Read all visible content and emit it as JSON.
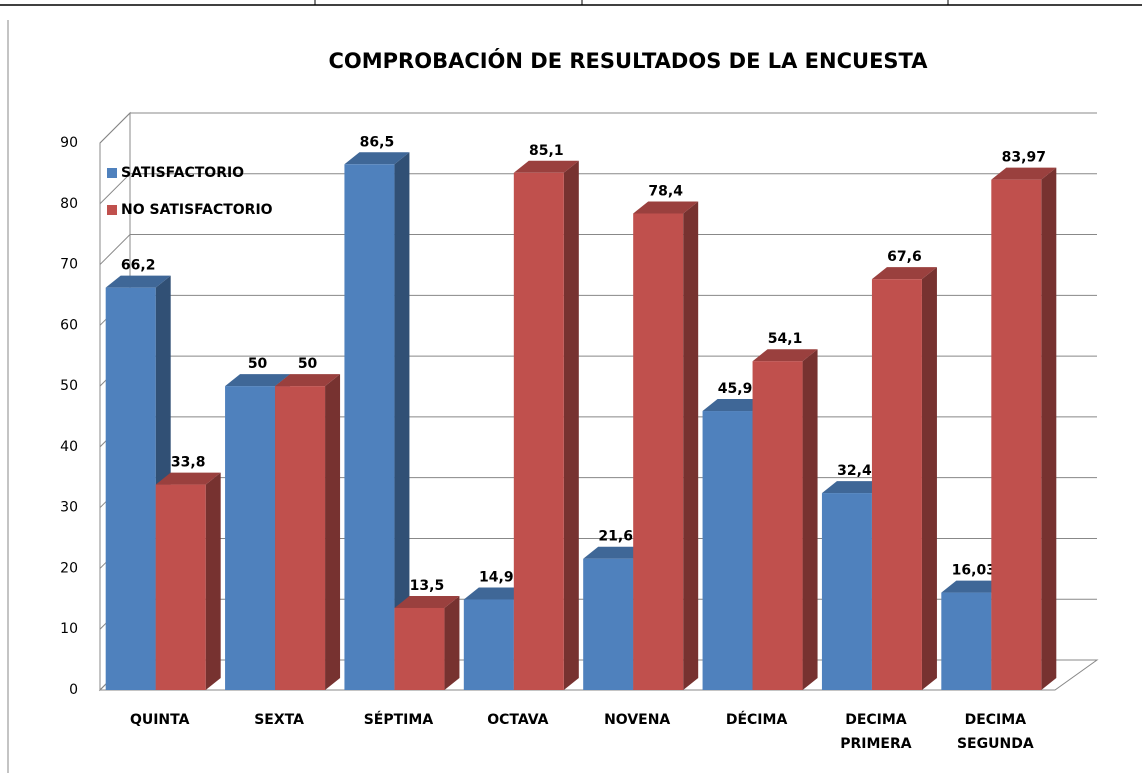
{
  "chart_data": {
    "type": "bar3d",
    "title": "COMPROBACIÓN DE RESULTADOS DE LA ENCUESTA",
    "categories": [
      "QUINTA",
      "SEXTA",
      "SÉPTIMA",
      "OCTAVA",
      "NOVENA",
      "DÉCIMA",
      "DECIMA PRIMERA",
      "DECIMA SEGUNDA"
    ],
    "series": [
      {
        "name": "SATISFACTORIO",
        "color": "#4f81bd",
        "values": [
          66.2,
          50,
          86.5,
          14.9,
          21.6,
          45.9,
          32.4,
          16.03
        ],
        "value_labels": [
          "66,2",
          "50",
          "86,5",
          "14,9",
          "21,6",
          "45,9",
          "32,4",
          "16,03"
        ]
      },
      {
        "name": "NO SATISFACTORIO",
        "color": "#c0504d",
        "values": [
          33.8,
          50,
          13.5,
          85.1,
          78.4,
          54.1,
          67.6,
          83.97
        ],
        "value_labels": [
          "33,8",
          "50",
          "13,5",
          "85,1",
          "78,4",
          "54,1",
          "67,6",
          "83,97"
        ]
      }
    ],
    "ylim": [
      0,
      90
    ],
    "yticks": [
      0,
      10,
      20,
      30,
      40,
      50,
      60,
      70,
      80,
      90
    ],
    "grid": true,
    "legend": "top-left"
  }
}
